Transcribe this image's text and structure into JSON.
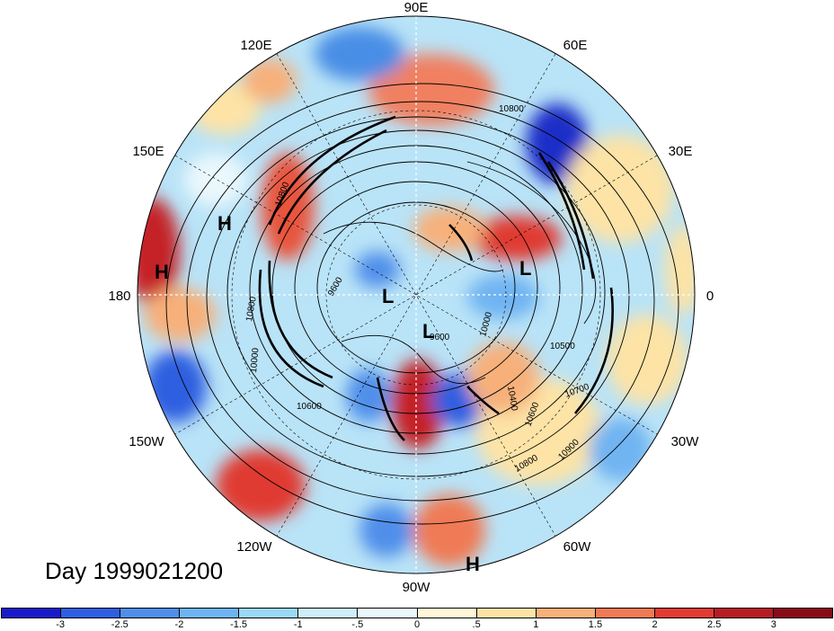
{
  "title": "Day 1999021200",
  "map": {
    "projection": "north polar stereographic",
    "longitude_labels": [
      "90E",
      "60E",
      "30E",
      "0",
      "30W",
      "60W",
      "90W",
      "120W",
      "150W",
      "180",
      "150E",
      "120E"
    ],
    "contour_labels": [
      "10800",
      "10800",
      "9600",
      "10000",
      "10400",
      "10500",
      "10600",
      "10700",
      "10800",
      "10900",
      "9600",
      "10800",
      "10000",
      "10600"
    ],
    "highs": [
      "H",
      "H",
      "H"
    ],
    "lows": [
      "L",
      "L",
      "L"
    ]
  },
  "colorbar": {
    "ticks": [
      "-3",
      "-2.5",
      "-2",
      "-1.5",
      "-1",
      "-.5",
      "0",
      ".5",
      "1",
      "1.5",
      "2",
      "2.5",
      "3"
    ],
    "colors": [
      "#1a1acc",
      "#2f5fe0",
      "#4f8fea",
      "#6fb4f2",
      "#9ad8f6",
      "#cdeefa",
      "#eaf8fd",
      "#fff7d6",
      "#fde3a6",
      "#f7b07a",
      "#ef7a55",
      "#e03b33",
      "#b71c25",
      "#8b0a18"
    ]
  }
}
